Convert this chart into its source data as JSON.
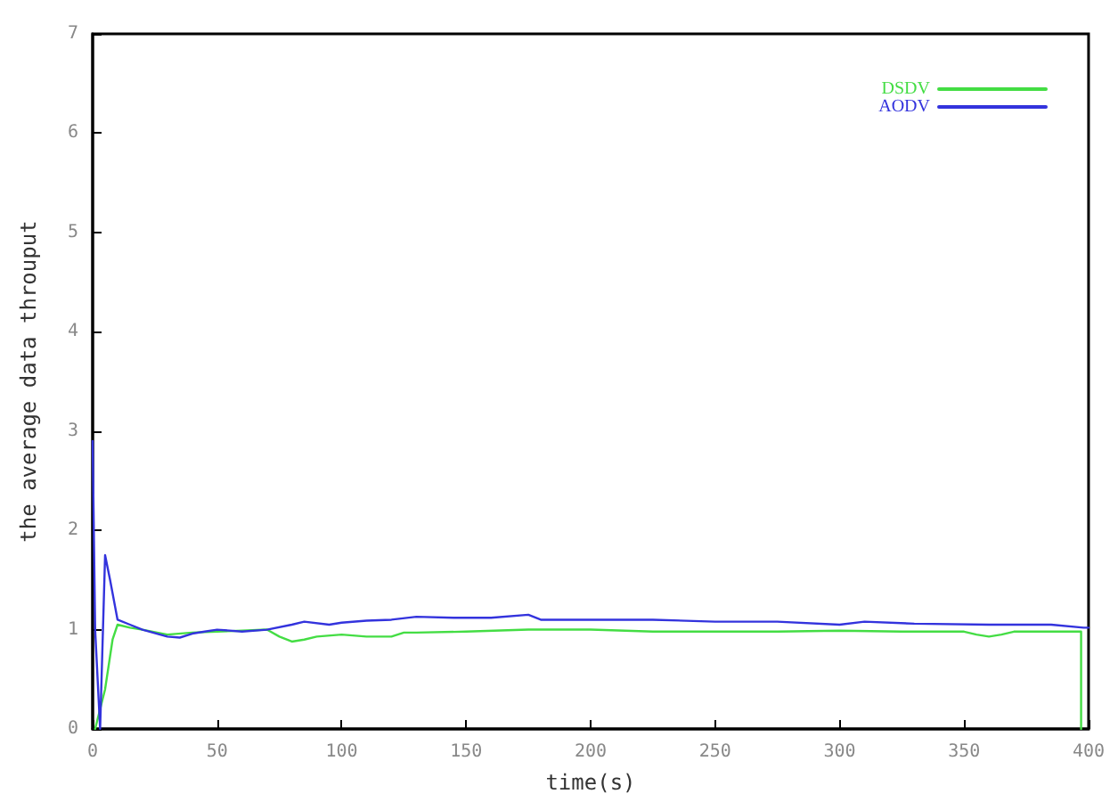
{
  "chart_data": {
    "type": "line",
    "xlabel": "time(s)",
    "ylabel": "the average data throuput",
    "xlim": [
      0,
      400
    ],
    "ylim": [
      0,
      7
    ],
    "xticks": [
      0,
      50,
      100,
      150,
      200,
      250,
      300,
      350,
      400
    ],
    "yticks": [
      0,
      1,
      2,
      3,
      4,
      5,
      6,
      7
    ],
    "grid": false,
    "legend": "top right",
    "marker": "none",
    "line_style": "solid",
    "series": [
      {
        "name": "DSDV",
        "color": "#44dd44",
        "x": [
          1,
          3,
          5,
          8,
          10,
          15,
          20,
          30,
          40,
          50,
          60,
          70,
          75,
          80,
          85,
          90,
          100,
          110,
          120,
          125,
          130,
          150,
          175,
          200,
          225,
          250,
          275,
          300,
          325,
          350,
          355,
          360,
          365,
          370,
          385,
          397,
          397
        ],
        "values": [
          0,
          0.2,
          0.4,
          0.9,
          1.05,
          1.02,
          1.0,
          0.95,
          0.97,
          0.98,
          0.99,
          1.0,
          0.93,
          0.88,
          0.9,
          0.93,
          0.95,
          0.93,
          0.93,
          0.97,
          0.97,
          0.98,
          1.0,
          1.0,
          0.98,
          0.98,
          0.98,
          0.99,
          0.98,
          0.98,
          0.95,
          0.93,
          0.95,
          0.98,
          0.98,
          0.98,
          0
        ]
      },
      {
        "name": "AODV",
        "color": "#3333dd",
        "x": [
          0,
          1,
          3,
          5,
          7,
          10,
          15,
          20,
          30,
          35,
          40,
          45,
          50,
          60,
          70,
          80,
          85,
          95,
          100,
          110,
          120,
          130,
          145,
          160,
          175,
          180,
          200,
          225,
          250,
          275,
          300,
          310,
          330,
          360,
          385,
          398,
          400
        ],
        "values": [
          2.9,
          1.0,
          0,
          1.75,
          1.5,
          1.1,
          1.05,
          1.0,
          0.93,
          0.92,
          0.96,
          0.98,
          1.0,
          0.98,
          1.0,
          1.05,
          1.08,
          1.05,
          1.07,
          1.09,
          1.1,
          1.13,
          1.12,
          1.12,
          1.15,
          1.1,
          1.1,
          1.1,
          1.08,
          1.08,
          1.05,
          1.08,
          1.06,
          1.05,
          1.05,
          1.02,
          1.02
        ]
      }
    ]
  }
}
